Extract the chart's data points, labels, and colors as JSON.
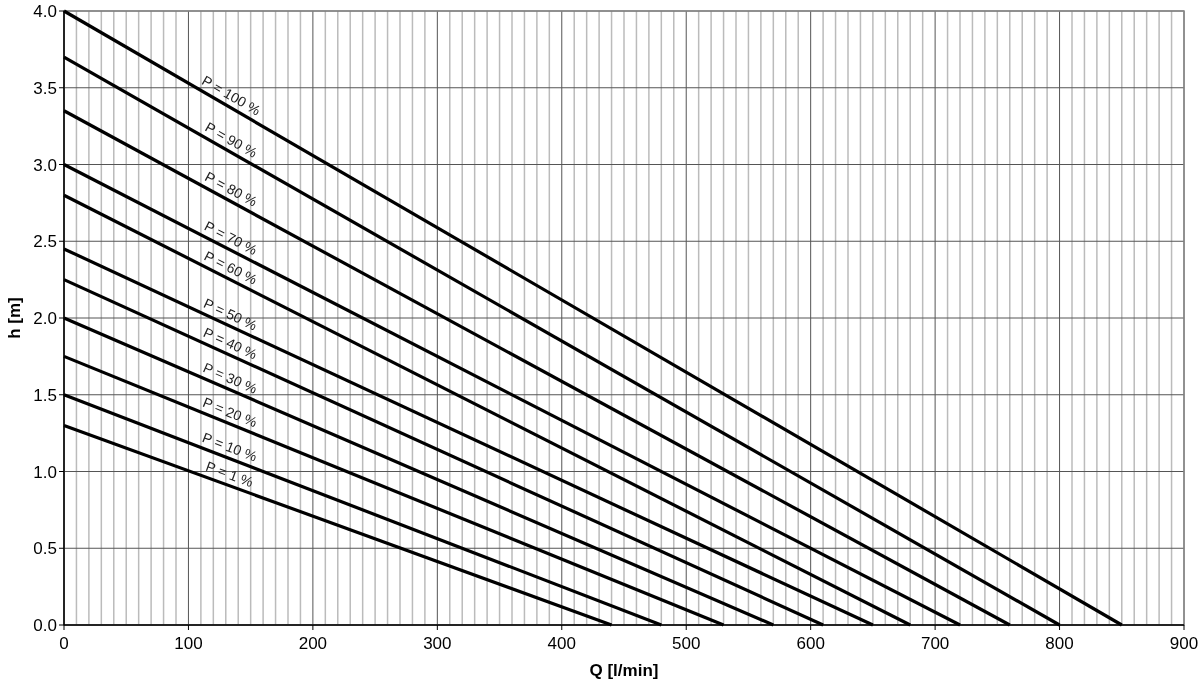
{
  "chart_data": {
    "type": "line",
    "xlabel": "Q [l/min]",
    "ylabel": "h [m]",
    "xlim": [
      0,
      900
    ],
    "ylim": [
      0,
      4
    ],
    "xticks": [
      0,
      {
        "value": 10,
        "label": null
      },
      {
        "value": 20,
        "label": null
      },
      {
        "value": 30,
        "label": null
      },
      {
        "value": 40,
        "label": null
      },
      {
        "value": 50,
        "label": null
      },
      {
        "value": 60,
        "label": null
      },
      {
        "value": 70,
        "label": null
      },
      {
        "value": 80,
        "label": null
      },
      {
        "value": 90,
        "label": null
      },
      100,
      {
        "value": 110,
        "label": null
      },
      {
        "value": 120,
        "label": null
      },
      {
        "value": 130,
        "label": null
      },
      {
        "value": 140,
        "label": null
      },
      {
        "value": 150,
        "label": null
      },
      {
        "value": 160,
        "label": null
      },
      {
        "value": 170,
        "label": null
      },
      {
        "value": 180,
        "label": null
      },
      {
        "value": 190,
        "label": null
      },
      200,
      {
        "value": 210,
        "label": null
      },
      {
        "value": 220,
        "label": null
      },
      {
        "value": 230,
        "label": null
      },
      {
        "value": 240,
        "label": null
      },
      {
        "value": 250,
        "label": null
      },
      {
        "value": 260,
        "label": null
      },
      {
        "value": 270,
        "label": null
      },
      {
        "value": 280,
        "label": null
      },
      {
        "value": 290,
        "label": null
      },
      300,
      {
        "value": 310,
        "label": null
      },
      {
        "value": 320,
        "label": null
      },
      {
        "value": 330,
        "label": null
      },
      {
        "value": 340,
        "label": null
      },
      {
        "value": 350,
        "label": null
      },
      {
        "value": 360,
        "label": null
      },
      {
        "value": 370,
        "label": null
      },
      {
        "value": 380,
        "label": null
      },
      {
        "value": 390,
        "label": null
      },
      400,
      {
        "value": 410,
        "label": null
      },
      {
        "value": 420,
        "label": null
      },
      {
        "value": 430,
        "label": null
      },
      {
        "value": 440,
        "label": null
      },
      {
        "value": 450,
        "label": null
      },
      {
        "value": 460,
        "label": null
      },
      {
        "value": 470,
        "label": null
      },
      {
        "value": 480,
        "label": null
      },
      {
        "value": 490,
        "label": null
      },
      500,
      {
        "value": 510,
        "label": null
      },
      {
        "value": 520,
        "label": null
      },
      {
        "value": 530,
        "label": null
      },
      {
        "value": 540,
        "label": null
      },
      {
        "value": 550,
        "label": null
      },
      {
        "value": 560,
        "label": null
      },
      {
        "value": 570,
        "label": null
      },
      {
        "value": 580,
        "label": null
      },
      {
        "value": 590,
        "label": null
      },
      600,
      {
        "value": 610,
        "label": null
      },
      {
        "value": 620,
        "label": null
      },
      {
        "value": 630,
        "label": null
      },
      {
        "value": 640,
        "label": null
      },
      {
        "value": 650,
        "label": null
      },
      {
        "value": 660,
        "label": null
      },
      {
        "value": 670,
        "label": null
      },
      {
        "value": 680,
        "label": null
      },
      {
        "value": 690,
        "label": null
      },
      700,
      {
        "value": 710,
        "label": null
      },
      {
        "value": 720,
        "label": null
      },
      {
        "value": 730,
        "label": null
      },
      {
        "value": 740,
        "label": null
      },
      {
        "value": 750,
        "label": null
      },
      {
        "value": 760,
        "label": null
      },
      {
        "value": 770,
        "label": null
      },
      {
        "value": 780,
        "label": null
      },
      {
        "value": 790,
        "label": null
      },
      800,
      {
        "value": 810,
        "label": null
      },
      {
        "value": 820,
        "label": null
      },
      {
        "value": 830,
        "label": null
      },
      {
        "value": 840,
        "label": null
      },
      {
        "value": 850,
        "label": null
      },
      {
        "value": 860,
        "label": null
      },
      {
        "value": 870,
        "label": null
      },
      {
        "value": 880,
        "label": null
      },
      {
        "value": 890,
        "label": null
      },
      900
    ],
    "yticks": [
      {
        "value": 0,
        "label": "0.0"
      },
      0.5,
      {
        "value": 1,
        "label": "1.0"
      },
      1.5,
      {
        "value": 2,
        "label": "2.0"
      },
      2.5,
      {
        "value": 3,
        "label": "3.0"
      },
      3.5,
      {
        "value": 4,
        "label": "4.0"
      }
    ],
    "grid": true,
    "line_style": "solid",
    "series": [
      {
        "name": "P = 100 %",
        "color": "#000000",
        "x": [
          0,
          850
        ],
        "values": [
          4.0,
          0
        ]
      },
      {
        "name": "P = 90 %",
        "color": "#000000",
        "x": [
          0,
          800
        ],
        "values": [
          3.7,
          0
        ]
      },
      {
        "name": "P = 80 %",
        "color": "#000000",
        "x": [
          0,
          760
        ],
        "values": [
          3.35,
          0
        ]
      },
      {
        "name": "P = 70 %",
        "color": "#000000",
        "x": [
          0,
          720
        ],
        "values": [
          3.0,
          0
        ]
      },
      {
        "name": "P = 60 %",
        "color": "#000000",
        "x": [
          0,
          680
        ],
        "values": [
          2.8,
          0
        ]
      },
      {
        "name": "P = 50 %",
        "color": "#000000",
        "x": [
          0,
          650
        ],
        "values": [
          2.45,
          0
        ]
      },
      {
        "name": "P = 40 %",
        "color": "#000000",
        "x": [
          0,
          610
        ],
        "values": [
          2.25,
          0
        ]
      },
      {
        "name": "P = 30 %",
        "color": "#000000",
        "x": [
          0,
          570
        ],
        "values": [
          2.0,
          0
        ]
      },
      {
        "name": "P = 20 %",
        "color": "#000000",
        "x": [
          0,
          530
        ],
        "values": [
          1.75,
          0
        ]
      },
      {
        "name": "P = 10 %",
        "color": "#000000",
        "x": [
          0,
          480
        ],
        "values": [
          1.5,
          0
        ]
      },
      {
        "name": "P = 1 %",
        "color": "#000000",
        "x": [
          0,
          440
        ],
        "values": [
          1.3,
          0
        ]
      }
    ]
  }
}
